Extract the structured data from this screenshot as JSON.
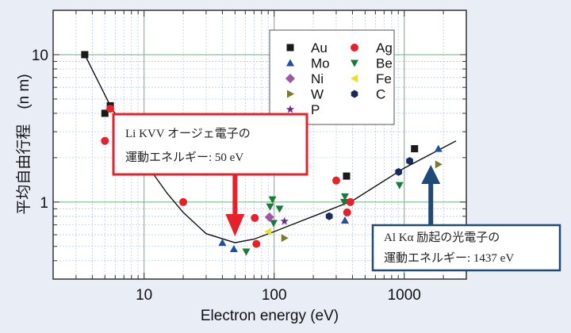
{
  "chart_data": {
    "type": "scatter",
    "xlabel": "Electron energy (eV)",
    "ylabel": "平均自由行程　(n m)",
    "xscale": "log",
    "yscale": "log",
    "xlim": [
      2,
      3000
    ],
    "ylim": [
      0.3,
      20
    ],
    "xticks": [
      {
        "v": 10,
        "label": "10"
      },
      {
        "v": 100,
        "label": "100"
      },
      {
        "v": 1000,
        "label": "1000"
      }
    ],
    "yticks": [
      {
        "v": 1,
        "label": "1"
      },
      {
        "v": 10,
        "label": "10"
      }
    ],
    "grid": true,
    "legend_position": "top-right",
    "series": [
      {
        "name": "Au",
        "marker": "square",
        "color": "#1a1a1a",
        "points": [
          [
            3.5,
            10
          ],
          [
            5,
            4.0
          ],
          [
            5.5,
            4.5
          ],
          [
            360,
            1.5
          ],
          [
            1200,
            2.3
          ]
        ]
      },
      {
        "name": "Ag",
        "marker": "circle",
        "color": "#e8202a",
        "points": [
          [
            5,
            2.6
          ],
          [
            5.5,
            4.3
          ],
          [
            20,
            1.0
          ],
          [
            71,
            0.78
          ],
          [
            73,
            0.52
          ],
          [
            300,
            1.4
          ],
          [
            364,
            0.85
          ],
          [
            385,
            1.0
          ]
        ]
      },
      {
        "name": "Mo",
        "marker": "triangle-up",
        "color": "#1f4fa0",
        "points": [
          [
            40,
            0.53
          ],
          [
            49,
            0.48
          ],
          [
            350,
            0.75
          ],
          [
            1830,
            2.3
          ]
        ]
      },
      {
        "name": "Be",
        "marker": "triangle-down",
        "color": "#1a7a3a",
        "points": [
          [
            61,
            0.46
          ],
          [
            97,
            1.04
          ],
          [
            93,
            0.93
          ],
          [
            110,
            0.9
          ],
          [
            99,
            0.72
          ],
          [
            350,
            1.09
          ],
          [
            345,
            1.0
          ],
          [
            920,
            1.3
          ]
        ]
      },
      {
        "name": "Ni",
        "marker": "diamond",
        "color": "#a055a8",
        "points": [
          [
            92,
            0.79
          ]
        ]
      },
      {
        "name": "Fe",
        "marker": "triangle-left",
        "color": "#e8e020",
        "points": [
          [
            90,
            0.63
          ]
        ]
      },
      {
        "name": "W",
        "marker": "triangle-right",
        "color": "#7a7a2a",
        "points": [
          [
            120,
            0.57
          ],
          [
            1830,
            1.8
          ]
        ]
      },
      {
        "name": "C",
        "marker": "hexagon",
        "color": "#1a2a5a",
        "points": [
          [
            265,
            0.8
          ],
          [
            905,
            1.6
          ],
          [
            1100,
            1.9
          ]
        ]
      },
      {
        "name": "P",
        "marker": "star",
        "color": "#6a2a8a",
        "points": [
          [
            120,
            0.74
          ]
        ]
      }
    ],
    "curve": [
      [
        3.5,
        10
      ],
      [
        5.5,
        4.5
      ],
      [
        8,
        2.6
      ],
      [
        10,
        1.9
      ],
      [
        15,
        1.15
      ],
      [
        20,
        0.85
      ],
      [
        30,
        0.61
      ],
      [
        50,
        0.53
      ],
      [
        70,
        0.56
      ],
      [
        100,
        0.63
      ],
      [
        200,
        0.8
      ],
      [
        400,
        1.02
      ],
      [
        1000,
        1.7
      ],
      [
        2500,
        2.6
      ]
    ],
    "annotations": [
      {
        "line1": "Li KVV オージェ電子の",
        "line2": "運動エネルギー: 50 eV",
        "x": 50,
        "color": "#e8202a"
      },
      {
        "line1": "Al  Kα  励起の光電子の",
        "line2": "運動エネルギー: 1437 eV",
        "x": 1600,
        "color": "#1f4a78"
      }
    ]
  }
}
